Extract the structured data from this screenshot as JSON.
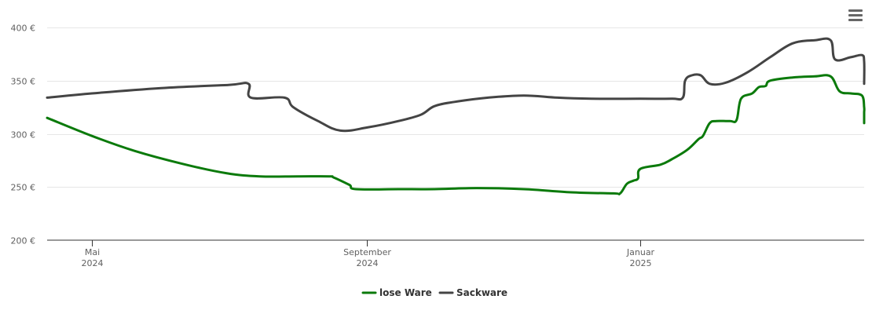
{
  "menu_icon": "hamburger-menu-icon",
  "chart_data": {
    "type": "line",
    "title": "",
    "xlabel": "",
    "ylabel": "",
    "ylim": [
      200,
      400
    ],
    "y_ticks": [
      {
        "value": 200,
        "label": "200 €"
      },
      {
        "value": 250,
        "label": "250 €"
      },
      {
        "value": 300,
        "label": "300 €"
      },
      {
        "value": 350,
        "label": "350 €"
      },
      {
        "value": 400,
        "label": "400 €"
      }
    ],
    "x_ticks": [
      {
        "date": "2024-05-01",
        "month": "Mai",
        "year": "2024"
      },
      {
        "date": "2024-09-01",
        "month": "September",
        "year": "2024"
      },
      {
        "date": "2025-01-01",
        "month": "Januar",
        "year": "2025"
      }
    ],
    "x_range": [
      "2024-04-11",
      "2025-04-11"
    ],
    "legend_position": "bottom",
    "grid": true,
    "series": [
      {
        "name": "lose Ware",
        "color": "#0b7a0b",
        "points": [
          [
            "2024-04-11",
            315
          ],
          [
            "2024-05-01",
            298
          ],
          [
            "2024-05-20",
            284
          ],
          [
            "2024-06-10",
            272
          ],
          [
            "2024-06-30",
            263
          ],
          [
            "2024-07-15",
            260
          ],
          [
            "2024-08-01",
            260
          ],
          [
            "2024-08-15",
            260
          ],
          [
            "2024-08-17",
            259
          ],
          [
            "2024-08-24",
            252
          ],
          [
            "2024-08-27",
            248
          ],
          [
            "2024-09-15",
            248
          ],
          [
            "2024-10-01",
            248
          ],
          [
            "2024-10-20",
            249
          ],
          [
            "2024-11-10",
            248
          ],
          [
            "2024-12-01",
            245
          ],
          [
            "2024-12-20",
            244
          ],
          [
            "2024-12-23",
            244
          ],
          [
            "2024-12-26",
            253
          ],
          [
            "2024-12-29",
            256
          ],
          [
            "2024-12-31",
            258
          ],
          [
            "2025-01-01",
            267
          ],
          [
            "2025-01-10",
            271
          ],
          [
            "2025-01-15",
            276
          ],
          [
            "2025-01-22",
            285
          ],
          [
            "2025-01-27",
            295
          ],
          [
            "2025-01-29",
            298
          ],
          [
            "2025-02-01",
            310
          ],
          [
            "2025-02-04",
            312
          ],
          [
            "2025-02-10",
            312
          ],
          [
            "2025-02-13",
            313
          ],
          [
            "2025-02-15",
            333
          ],
          [
            "2025-02-20",
            338
          ],
          [
            "2025-02-23",
            344
          ],
          [
            "2025-02-26",
            345
          ],
          [
            "2025-02-28",
            350
          ],
          [
            "2025-03-10",
            353
          ],
          [
            "2025-03-20",
            354
          ],
          [
            "2025-03-27",
            354
          ],
          [
            "2025-03-31",
            340
          ],
          [
            "2025-04-05",
            338
          ],
          [
            "2025-04-10",
            336
          ],
          [
            "2025-04-13",
            325
          ],
          [
            "2025-04-16",
            320
          ],
          [
            "2025-04-19",
            313
          ],
          [
            "2025-04-23",
            310
          ]
        ]
      },
      {
        "name": "Sackware",
        "color": "#444444",
        "points": [
          [
            "2024-04-11",
            334
          ],
          [
            "2024-05-01",
            338
          ],
          [
            "2024-06-01",
            343
          ],
          [
            "2024-07-01",
            346
          ],
          [
            "2024-07-10",
            347
          ],
          [
            "2024-07-11",
            334
          ],
          [
            "2024-07-26",
            334
          ],
          [
            "2024-07-30",
            325
          ],
          [
            "2024-08-10",
            312
          ],
          [
            "2024-08-20",
            303
          ],
          [
            "2024-09-01",
            306
          ],
          [
            "2024-09-15",
            312
          ],
          [
            "2024-09-25",
            318
          ],
          [
            "2024-10-01",
            326
          ],
          [
            "2024-10-10",
            330
          ],
          [
            "2024-10-25",
            334
          ],
          [
            "2024-11-10",
            336
          ],
          [
            "2024-11-25",
            334
          ],
          [
            "2024-12-10",
            333
          ],
          [
            "2025-01-01",
            333
          ],
          [
            "2025-01-15",
            333
          ],
          [
            "2025-01-20",
            334
          ],
          [
            "2025-01-21",
            350
          ],
          [
            "2025-01-24",
            355
          ],
          [
            "2025-01-28",
            355
          ],
          [
            "2025-02-01",
            347
          ],
          [
            "2025-02-08",
            348
          ],
          [
            "2025-02-18",
            358
          ],
          [
            "2025-02-28",
            372
          ],
          [
            "2025-03-10",
            385
          ],
          [
            "2025-03-20",
            388
          ],
          [
            "2025-03-27",
            388
          ],
          [
            "2025-03-29",
            370
          ],
          [
            "2025-04-05",
            372
          ],
          [
            "2025-04-10",
            374
          ],
          [
            "2025-04-15",
            368
          ],
          [
            "2025-04-23",
            347
          ]
        ]
      }
    ]
  }
}
